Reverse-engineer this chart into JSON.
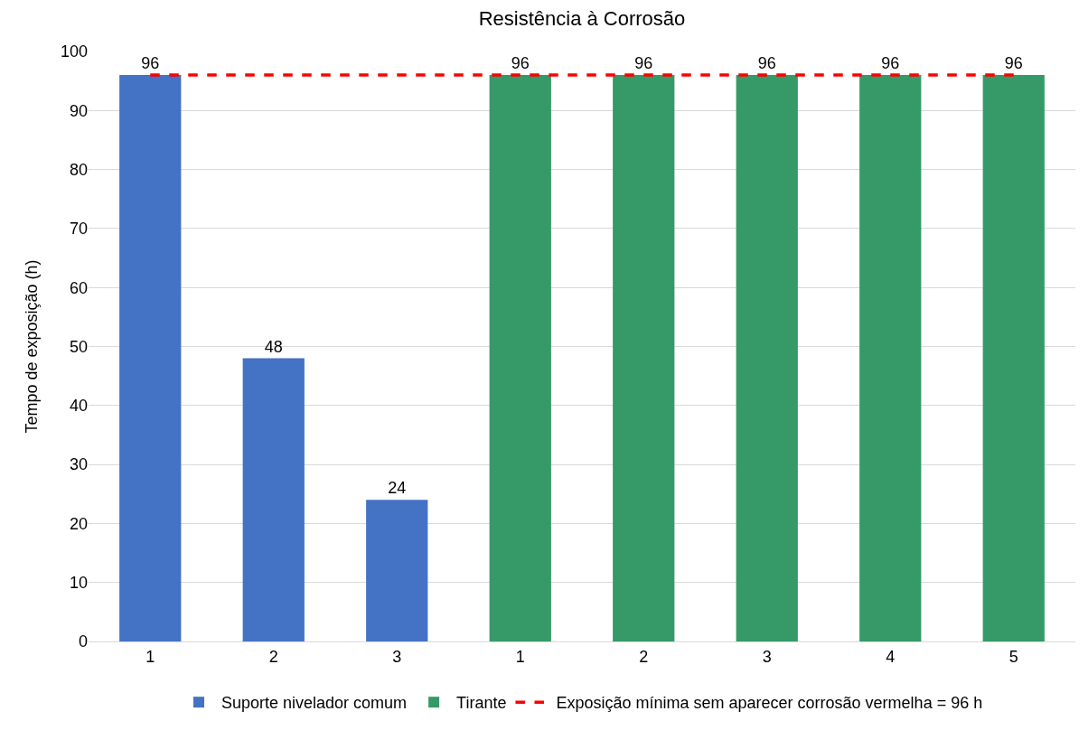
{
  "chart_data": {
    "type": "bar",
    "title": "Resistência à Corrosão",
    "ylabel": "Tempo de exposição (h)",
    "categories": [
      "1",
      "2",
      "3",
      "1",
      "2",
      "3",
      "4",
      "5"
    ],
    "series": [
      {
        "name": "Suporte nivelador comum",
        "color": "#4472c4",
        "values": [
          96,
          48,
          24,
          null,
          null,
          null,
          null,
          null
        ],
        "value_labels": [
          "96",
          "48",
          "24",
          null,
          null,
          null,
          null,
          null
        ]
      },
      {
        "name": "Tirante",
        "color": "#359a68",
        "values": [
          null,
          null,
          null,
          96,
          96,
          96,
          96,
          96
        ],
        "value_labels": [
          null,
          null,
          null,
          "96",
          "96",
          "96",
          "96",
          "96"
        ]
      },
      {
        "name": "Exposição mínima sem aparecer corrosão vermelha = 96 h",
        "type": "line",
        "color": "#ff0000",
        "line_style": "dashed",
        "marker": "none",
        "values": [
          96,
          96,
          96,
          96,
          96,
          96,
          96,
          96
        ]
      }
    ],
    "ylim": [
      0,
      100
    ],
    "yticks": [
      0,
      10,
      20,
      30,
      40,
      50,
      60,
      70,
      80,
      90,
      100
    ],
    "grid": "y",
    "legend": "bottom"
  }
}
